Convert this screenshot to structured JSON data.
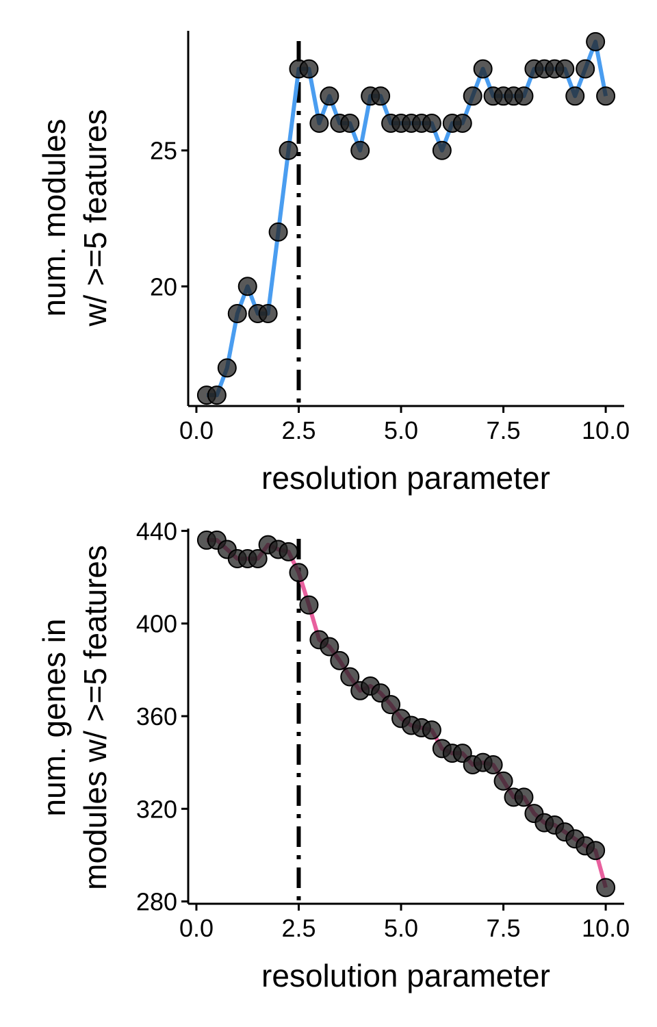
{
  "colors": {
    "top_line": "#4a9df0",
    "bottom_line": "#e8609e",
    "point_fill": "#222222",
    "point_alpha": 0.75,
    "vline": "#000000"
  },
  "chart_data": [
    {
      "type": "line",
      "xlabel": "resolution parameter",
      "ylabel_lines": [
        "num. modules",
        "w/ >=5 features"
      ],
      "xlim": [
        -0.2,
        10.45
      ],
      "ylim": [
        15.6,
        29.4
      ],
      "xticks": [
        0,
        2.5,
        5,
        7.5,
        10
      ],
      "xtick_labels": [
        "0.0",
        "2.5",
        "5.0",
        "7.5",
        "10.0"
      ],
      "yticks": [
        20,
        25
      ],
      "ytick_labels": [
        "20",
        "25"
      ],
      "vline_x": 2.5,
      "vline_style": "dashdot",
      "grid": false,
      "series": [
        {
          "x": [
            0.25,
            0.5,
            0.75,
            1,
            1.25,
            1.5,
            1.75,
            2,
            2.25,
            2.5,
            2.75,
            3,
            3.25,
            3.5,
            3.75,
            4,
            4.25,
            4.5,
            4.75,
            5,
            5.25,
            5.5,
            5.75,
            6,
            6.25,
            6.5,
            6.75,
            7,
            7.25,
            7.5,
            7.75,
            8,
            8.25,
            8.5,
            8.75,
            9,
            9.25,
            9.5,
            9.75,
            10
          ],
          "values": [
            16,
            16,
            17,
            19,
            20,
            19,
            19,
            22,
            25,
            28,
            28,
            26,
            27,
            26,
            26,
            25,
            27,
            27,
            26,
            26,
            26,
            26,
            26,
            25,
            26,
            26,
            27,
            28,
            27,
            27,
            27,
            27,
            28,
            28,
            28,
            28,
            27,
            28,
            29,
            27
          ]
        }
      ]
    },
    {
      "type": "line",
      "xlabel": "resolution parameter",
      "ylabel_lines": [
        "num. genes in",
        "modules w/ >=5 features"
      ],
      "xlim": [
        -0.2,
        10.45
      ],
      "ylim": [
        279,
        441
      ],
      "xticks": [
        0,
        2.5,
        5,
        7.5,
        10
      ],
      "xtick_labels": [
        "0.0",
        "2.5",
        "5.0",
        "7.5",
        "10.0"
      ],
      "yticks": [
        280,
        320,
        360,
        400,
        440
      ],
      "ytick_labels": [
        "280",
        "320",
        "360",
        "400",
        "440"
      ],
      "vline_x": 2.5,
      "vline_style": "dashdot",
      "grid": false,
      "series": [
        {
          "x": [
            0.25,
            0.5,
            0.75,
            1,
            1.25,
            1.5,
            1.75,
            2,
            2.25,
            2.5,
            2.75,
            3,
            3.25,
            3.5,
            3.75,
            4,
            4.25,
            4.5,
            4.75,
            5,
            5.25,
            5.5,
            5.75,
            6,
            6.25,
            6.5,
            6.75,
            7,
            7.25,
            7.5,
            7.75,
            8,
            8.25,
            8.5,
            8.75,
            9,
            9.25,
            9.5,
            9.75,
            10
          ],
          "values": [
            436,
            436,
            432,
            428,
            428,
            428,
            434,
            432,
            431,
            422,
            408,
            393,
            390,
            384,
            377,
            371,
            373,
            370,
            365,
            359,
            356,
            355,
            354,
            346,
            344,
            344,
            339,
            340,
            339,
            332,
            325,
            325,
            318,
            314,
            313,
            310,
            307,
            304,
            302,
            286
          ]
        }
      ]
    }
  ]
}
